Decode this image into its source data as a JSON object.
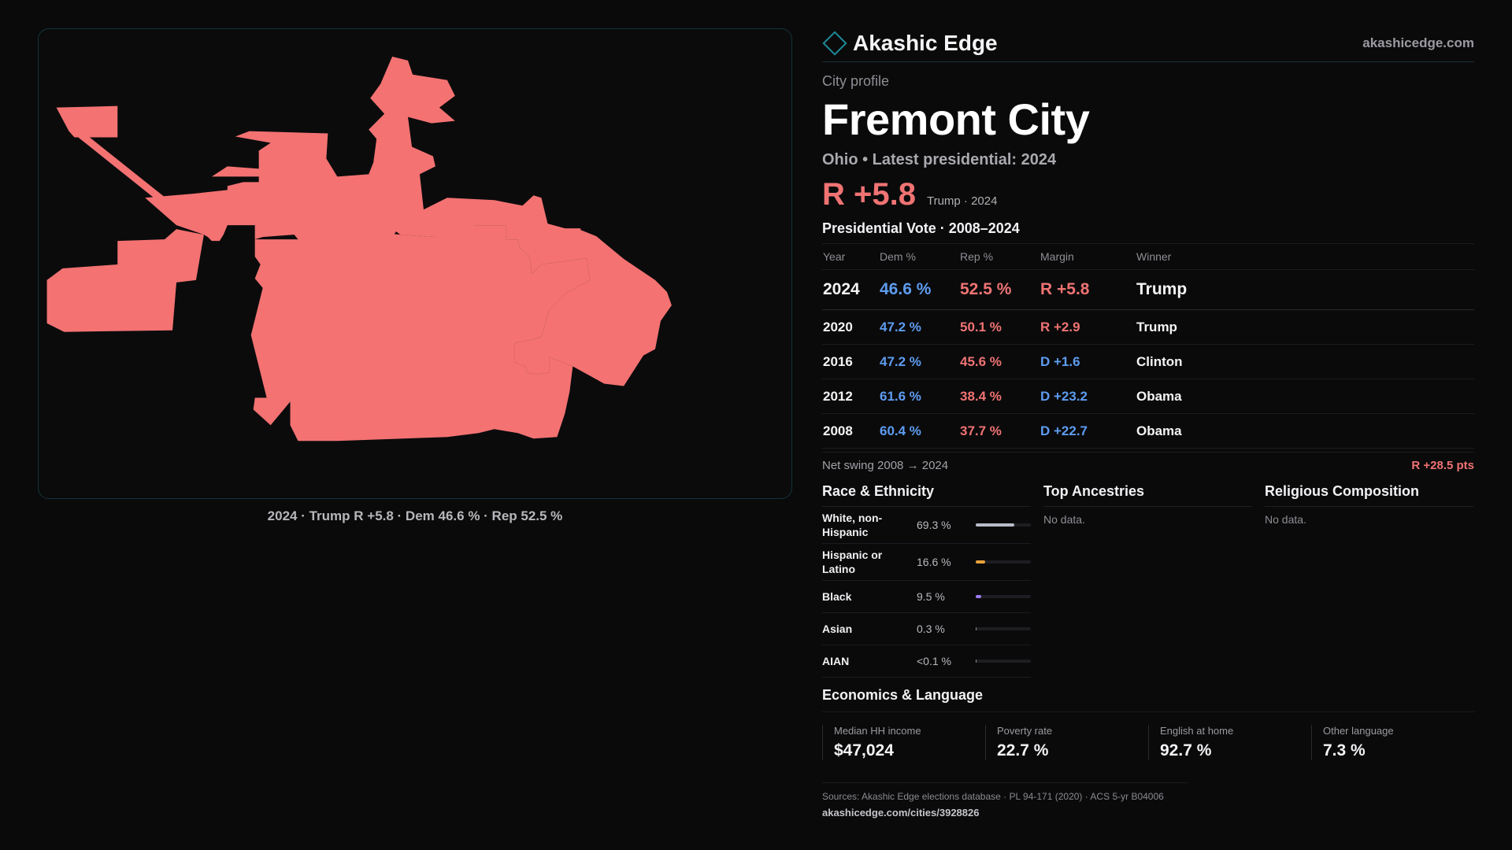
{
  "colors": {
    "rep": "#f07373",
    "dem": "#5e9cf0",
    "map_fill": "#f47272",
    "accent": "#1f8a99",
    "race_bars": [
      "#b8bcc8",
      "#e8a23a",
      "#9b7cf0",
      "#8e8e94",
      "#8e8e94"
    ]
  },
  "map": {
    "caption": "2024 · Trump R +5.8 · Dem 46.6 % · Rep 52.5 %"
  },
  "header": {
    "brand": "Akashic Edge",
    "site": "akashicedge.com",
    "logo_icon": "diamond-icon"
  },
  "profile": {
    "kicker": "City profile",
    "name": "Fremont City",
    "subtitle": "Ohio • Latest presidential: 2024",
    "margin": "R +5.8",
    "margin_note": "Trump · 2024"
  },
  "votes": {
    "title": "Presidential Vote · 2008–2024",
    "headers": [
      "Year",
      "Dem %",
      "Rep %",
      "Margin",
      "Winner"
    ],
    "rows": [
      {
        "year": "2024",
        "dem": "46.6 %",
        "rep": "52.5 %",
        "margin": "R +5.8",
        "party": "R",
        "winner": "Trump"
      },
      {
        "year": "2020",
        "dem": "47.2 %",
        "rep": "50.1 %",
        "margin": "R +2.9",
        "party": "R",
        "winner": "Trump"
      },
      {
        "year": "2016",
        "dem": "47.2 %",
        "rep": "45.6 %",
        "margin": "D +1.6",
        "party": "D",
        "winner": "Clinton"
      },
      {
        "year": "2012",
        "dem": "61.6 %",
        "rep": "38.4 %",
        "margin": "D +23.2",
        "party": "D",
        "winner": "Obama"
      },
      {
        "year": "2008",
        "dem": "60.4 %",
        "rep": "37.7 %",
        "margin": "D +22.7",
        "party": "D",
        "winner": "Obama"
      }
    ],
    "swing_label": "Net swing 2008 → 2024",
    "swing_value": "R +28.5 pts"
  },
  "race": {
    "title": "Race & Ethnicity",
    "rows": [
      {
        "label": "White, non-Hispanic",
        "value": "69.3 %",
        "share": 0.693
      },
      {
        "label": "Hispanic or Latino",
        "value": "16.6 %",
        "share": 0.166
      },
      {
        "label": "Black",
        "value": "9.5 %",
        "share": 0.095
      },
      {
        "label": "Asian",
        "value": "0.3 %",
        "share": 0.003
      },
      {
        "label": "AIAN",
        "value": "<0.1 %",
        "share": 0.0005
      }
    ]
  },
  "ancestries": {
    "title": "Top Ancestries",
    "empty": "No data."
  },
  "religion": {
    "title": "Religious Composition",
    "empty": "No data."
  },
  "economics": {
    "title": "Economics & Language",
    "items": [
      {
        "label": "Median HH income",
        "value": "$47,024"
      },
      {
        "label": "Poverty rate",
        "value": "22.7 %"
      },
      {
        "label": "English at home",
        "value": "92.7 %"
      },
      {
        "label": "Other language",
        "value": "7.3 %"
      }
    ]
  },
  "footer": {
    "sources": "Sources: Akashic Edge elections database · PL 94-171 (2020) · ACS 5-yr B04006",
    "url": "akashicedge.com/cities/3928826"
  }
}
